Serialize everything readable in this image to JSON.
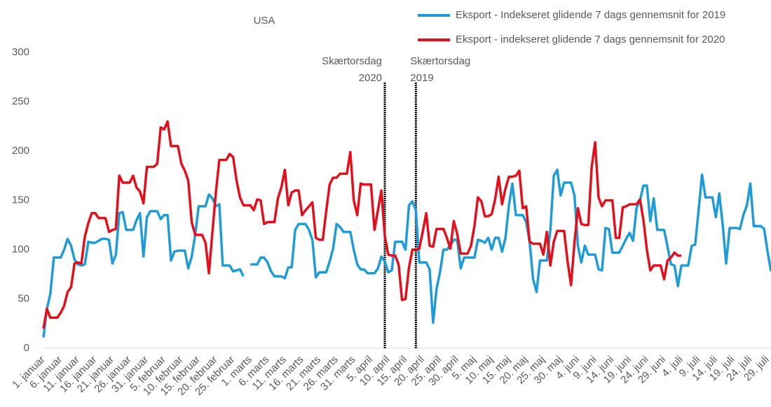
{
  "chart_data": {
    "type": "line",
    "title": "USA",
    "categories": [
      "1. januar",
      null,
      null,
      null,
      null,
      "6. januar",
      null,
      null,
      null,
      null,
      "11. januar",
      null,
      null,
      null,
      null,
      "16. januar",
      null,
      null,
      null,
      null,
      "21. januar",
      null,
      null,
      null,
      null,
      "26. januar",
      null,
      null,
      null,
      null,
      "31. januar",
      null,
      null,
      null,
      null,
      "5. februar",
      null,
      null,
      null,
      null,
      "10. februar",
      null,
      null,
      null,
      null,
      "15. februar",
      null,
      null,
      null,
      null,
      "20. februar",
      null,
      null,
      null,
      null,
      "25. februar",
      null,
      null,
      null,
      null,
      "1. marts",
      null,
      null,
      null,
      null,
      "6. marts",
      null,
      null,
      null,
      null,
      "11. marts",
      null,
      null,
      null,
      null,
      "16. marts",
      null,
      null,
      null,
      null,
      "21. marts",
      null,
      null,
      null,
      null,
      "26. marts",
      null,
      null,
      null,
      null,
      "31. marts",
      null,
      null,
      null,
      null,
      "5. april",
      null,
      null,
      null,
      null,
      "10. april",
      null,
      null,
      null,
      null,
      "15. april",
      null,
      null,
      null,
      null,
      "20. april",
      null,
      null,
      null,
      null,
      "25. april",
      null,
      null,
      null,
      null,
      "30. april",
      null,
      null,
      null,
      null,
      "5. maj",
      null,
      null,
      null,
      null,
      "10. maj",
      null,
      null,
      null,
      null,
      "15. maj",
      null,
      null,
      null,
      null,
      "20. maj",
      null,
      null,
      null,
      null,
      "25. maj",
      null,
      null,
      null,
      null,
      "30. maj",
      null,
      null,
      null,
      null,
      "4. juni",
      null,
      null,
      null,
      null,
      "9. juni",
      null,
      null,
      null,
      null,
      "14. juni",
      null,
      null,
      null,
      null,
      "19. juni",
      null,
      null,
      null,
      null,
      "24. juni",
      null,
      null,
      null,
      null,
      "29. juni",
      null,
      null,
      null,
      null,
      "4. juli",
      null,
      null,
      null,
      null,
      "9. juli",
      null,
      null,
      null,
      null,
      "14. juli",
      null,
      null,
      null,
      null,
      "19. juli",
      null,
      null,
      null,
      null,
      "24. juli",
      null,
      null,
      null,
      null,
      "29. juli",
      null
    ],
    "series": [
      {
        "name": "Eksport - Indekseret glidende 7 dags gennemsnit for 2019",
        "color": "#1f9bd7",
        "values": [
          11,
          40,
          55,
          92,
          92,
          92,
          100,
          111,
          104,
          90,
          85,
          84,
          85,
          108,
          107,
          107,
          109,
          111,
          111,
          110,
          86,
          95,
          137,
          138,
          120,
          120,
          120,
          130,
          137,
          93,
          133,
          139,
          139,
          139,
          131,
          135,
          135,
          89,
          98,
          99,
          99,
          99,
          81,
          93,
          115,
          144,
          144,
          144,
          156,
          152,
          144,
          146,
          84,
          84,
          84,
          78,
          79,
          80,
          73,
          null,
          85,
          85,
          85,
          92,
          92,
          87,
          78,
          73,
          73,
          73,
          71,
          82,
          82,
          120,
          126,
          126,
          126,
          120,
          110,
          72,
          77,
          77,
          77,
          88,
          101,
          126,
          123,
          118,
          118,
          118,
          100,
          85,
          80,
          80,
          76,
          76,
          76,
          81,
          93,
          88,
          77,
          79,
          108,
          108,
          108,
          100,
          145,
          149,
          140,
          87,
          87,
          87,
          80,
          26,
          60,
          77,
          100,
          100,
          104,
          110,
          110,
          81,
          92,
          92,
          92,
          92,
          110,
          109,
          107,
          112,
          100,
          112,
          112,
          98,
          112,
          145,
          167,
          135,
          135,
          135,
          128,
          108,
          70,
          57,
          89,
          89,
          89,
          120,
          175,
          181,
          155,
          168,
          168,
          168,
          155,
          104,
          87,
          104,
          95,
          95,
          95,
          80,
          79,
          122,
          121,
          97,
          97,
          97,
          104,
          111,
          117,
          109,
          142,
          150,
          165,
          165,
          129,
          152,
          120,
          120,
          120,
          103,
          85,
          84,
          63,
          84,
          84,
          84,
          104,
          105,
          140,
          176,
          153,
          153,
          153,
          133,
          157,
          125,
          86,
          122,
          122,
          122,
          121,
          135,
          145,
          167,
          124,
          124,
          124,
          121,
          98,
          78
        ]
      },
      {
        "name": "Eksport - indekseret glidende 7 dags gennemsnit for 2020",
        "color": "#e3101c",
        "values": [
          20,
          40,
          31,
          31,
          31,
          36,
          43,
          57,
          62,
          86,
          87,
          86,
          113,
          127,
          137,
          137,
          132,
          132,
          132,
          118,
          120,
          121,
          175,
          168,
          168,
          168,
          175,
          163,
          159,
          147,
          184,
          184,
          184,
          187,
          224,
          222,
          230,
          205,
          205,
          205,
          187,
          180,
          170,
          128,
          115,
          115,
          115,
          107,
          76,
          118,
          158,
          191,
          191,
          191,
          197,
          194,
          170,
          153,
          145,
          145,
          145,
          140,
          151,
          150,
          126,
          128,
          128,
          128,
          152,
          163,
          181,
          145,
          158,
          160,
          160,
          135,
          140,
          144,
          148,
          112,
          110,
          110,
          139,
          166,
          173,
          173,
          177,
          177,
          177,
          199,
          150,
          135,
          167,
          166,
          166,
          166,
          120,
          140,
          160,
          114,
          95,
          94,
          94,
          85,
          49,
          50,
          82,
          100,
          100,
          101,
          118,
          137,
          104,
          103,
          121,
          121,
          121,
          112,
          101,
          129,
          116,
          96,
          96,
          96,
          104,
          124,
          153,
          149,
          134,
          134,
          136,
          151,
          174,
          146,
          162,
          174,
          174,
          175,
          180,
          142,
          144,
          108,
          106,
          106,
          106,
          95,
          118,
          84,
          108,
          119,
          119,
          119,
          88,
          64,
          107,
          142,
          126,
          125,
          125,
          184,
          209,
          153,
          144,
          150,
          150,
          150,
          112,
          112,
          143,
          144,
          146,
          146,
          146,
          151,
          130,
          100,
          79,
          84,
          84,
          84,
          70,
          89,
          92,
          97,
          94,
          94,
          null,
          null,
          null,
          null,
          null,
          null,
          null,
          null,
          null,
          null,
          null,
          null,
          null,
          null,
          null,
          null,
          null,
          null,
          null,
          null,
          null,
          null,
          null,
          null,
          null,
          null
        ]
      }
    ],
    "annotations": [
      {
        "lines": [
          "Skærtorsdag",
          "2020"
        ],
        "x": 99,
        "align": "left"
      },
      {
        "lines": [
          "Skærtorsdag",
          "2019"
        ],
        "x": 108,
        "align": "right"
      }
    ],
    "ylim": [
      0,
      300
    ],
    "yticks": [
      0,
      50,
      100,
      150,
      200,
      250,
      300
    ],
    "grid": false,
    "legend": "top-right"
  }
}
